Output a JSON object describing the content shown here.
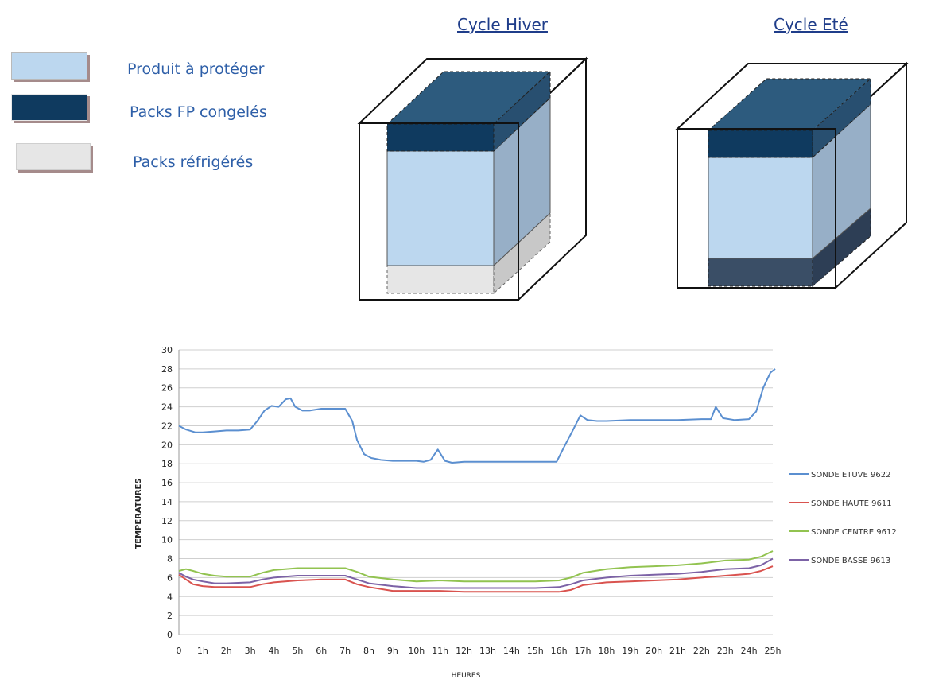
{
  "legend": {
    "items": [
      {
        "label": "Produit à protéger",
        "color": "#bcd7ef"
      },
      {
        "label": "Packs FP congelés",
        "color": "#0f3a5f"
      },
      {
        "label": "Packs réfrigérés",
        "color": "#e6e6e6"
      }
    ]
  },
  "cycles": {
    "hiver_title": "Cycle Hiver",
    "ete_title": "Cycle Eté"
  },
  "chart_data": {
    "type": "line",
    "title": "",
    "xlabel": "HEURES",
    "ylabel": "TEMPÉRATURES",
    "ylim": [
      0,
      30
    ],
    "xlim": [
      0,
      25
    ],
    "yticks": [
      "0",
      "2",
      "4",
      "6",
      "8",
      "10",
      "12",
      "14",
      "16",
      "18",
      "20",
      "22",
      "24",
      "26",
      "28",
      "30"
    ],
    "xticks": [
      "0",
      "1h",
      "2h",
      "3h",
      "4h",
      "5h",
      "6h",
      "7h",
      "8h",
      "9h",
      "10h",
      "11h",
      "12h",
      "13h",
      "14h",
      "15h",
      "16h",
      "17h",
      "18h",
      "19h",
      "20h",
      "21h",
      "22h",
      "23h",
      "24h",
      "25h"
    ],
    "grid": true,
    "legend_position": "right",
    "series": [
      {
        "name": "SONDE ETUVE 9622",
        "color": "#5b8fd0",
        "x": [
          0,
          0.3,
          0.7,
          1,
          1.5,
          2,
          2.5,
          3,
          3.3,
          3.6,
          3.9,
          4.2,
          4.5,
          4.7,
          4.9,
          5.2,
          5.5,
          6,
          6.5,
          7,
          7.3,
          7.5,
          7.8,
          8.1,
          8.5,
          9,
          9.5,
          10,
          10.3,
          10.6,
          10.9,
          11.2,
          11.5,
          12,
          13,
          14,
          15,
          15.9,
          16.2,
          16.6,
          16.9,
          17.2,
          17.6,
          18,
          19,
          20,
          21,
          22,
          22.4,
          22.6,
          22.9,
          23.4,
          24,
          24.3,
          24.6,
          24.9,
          25.1
        ],
        "values": [
          22,
          21.6,
          21.3,
          21.3,
          21.4,
          21.5,
          21.5,
          21.6,
          22.5,
          23.6,
          24.1,
          24.0,
          24.8,
          24.9,
          24.0,
          23.6,
          23.6,
          23.8,
          23.8,
          23.8,
          22.5,
          20.5,
          19.0,
          18.6,
          18.4,
          18.3,
          18.3,
          18.3,
          18.2,
          18.4,
          19.5,
          18.3,
          18.1,
          18.2,
          18.2,
          18.2,
          18.2,
          18.2,
          19.7,
          21.6,
          23.1,
          22.6,
          22.5,
          22.5,
          22.6,
          22.6,
          22.6,
          22.7,
          22.7,
          24.0,
          22.8,
          22.6,
          22.7,
          23.5,
          26.0,
          27.6,
          28.0
        ]
      },
      {
        "name": "SONDE HAUTE 9611",
        "color": "#d9534f",
        "x": [
          0,
          0.3,
          0.6,
          1,
          1.5,
          2,
          3,
          3.5,
          4,
          5,
          6,
          7,
          7.5,
          8,
          9,
          10,
          11,
          12,
          13,
          14,
          15,
          16,
          16.5,
          17,
          18,
          19,
          20,
          21,
          22,
          23,
          24,
          24.5,
          25
        ],
        "values": [
          6.3,
          5.8,
          5.3,
          5.1,
          5.0,
          5.0,
          5.0,
          5.3,
          5.5,
          5.7,
          5.8,
          5.8,
          5.3,
          5.0,
          4.6,
          4.6,
          4.6,
          4.5,
          4.5,
          4.5,
          4.5,
          4.5,
          4.7,
          5.2,
          5.5,
          5.6,
          5.7,
          5.8,
          6.0,
          6.2,
          6.4,
          6.7,
          7.2
        ]
      },
      {
        "name": "SONDE CENTRE 9612",
        "color": "#92c350",
        "x": [
          0,
          0.3,
          0.6,
          1,
          1.5,
          2,
          3,
          3.5,
          4,
          5,
          6,
          7,
          7.5,
          8,
          9,
          10,
          11,
          12,
          13,
          14,
          15,
          16,
          16.5,
          17,
          18,
          19,
          20,
          21,
          22,
          23,
          24,
          24.5,
          25
        ],
        "values": [
          6.7,
          6.9,
          6.7,
          6.4,
          6.2,
          6.1,
          6.1,
          6.5,
          6.8,
          7.0,
          7.0,
          7.0,
          6.6,
          6.1,
          5.8,
          5.6,
          5.7,
          5.6,
          5.6,
          5.6,
          5.6,
          5.7,
          6.0,
          6.5,
          6.9,
          7.1,
          7.2,
          7.3,
          7.5,
          7.8,
          7.9,
          8.2,
          8.8
        ]
      },
      {
        "name": "SONDE BASSE 9613",
        "color": "#7c62a6",
        "x": [
          0,
          0.3,
          0.6,
          1,
          1.5,
          2,
          3,
          3.5,
          4,
          5,
          6,
          7,
          7.5,
          8,
          9,
          10,
          11,
          12,
          13,
          14,
          15,
          16,
          16.5,
          17,
          18,
          19,
          20,
          21,
          22,
          23,
          24,
          24.5,
          25
        ],
        "values": [
          6.5,
          6.1,
          5.8,
          5.6,
          5.4,
          5.4,
          5.5,
          5.8,
          6.0,
          6.2,
          6.2,
          6.2,
          5.8,
          5.4,
          5.1,
          4.9,
          4.9,
          4.9,
          4.9,
          4.9,
          4.9,
          5.0,
          5.3,
          5.7,
          6.0,
          6.2,
          6.3,
          6.4,
          6.6,
          6.9,
          7.0,
          7.3,
          8.0
        ]
      }
    ]
  }
}
